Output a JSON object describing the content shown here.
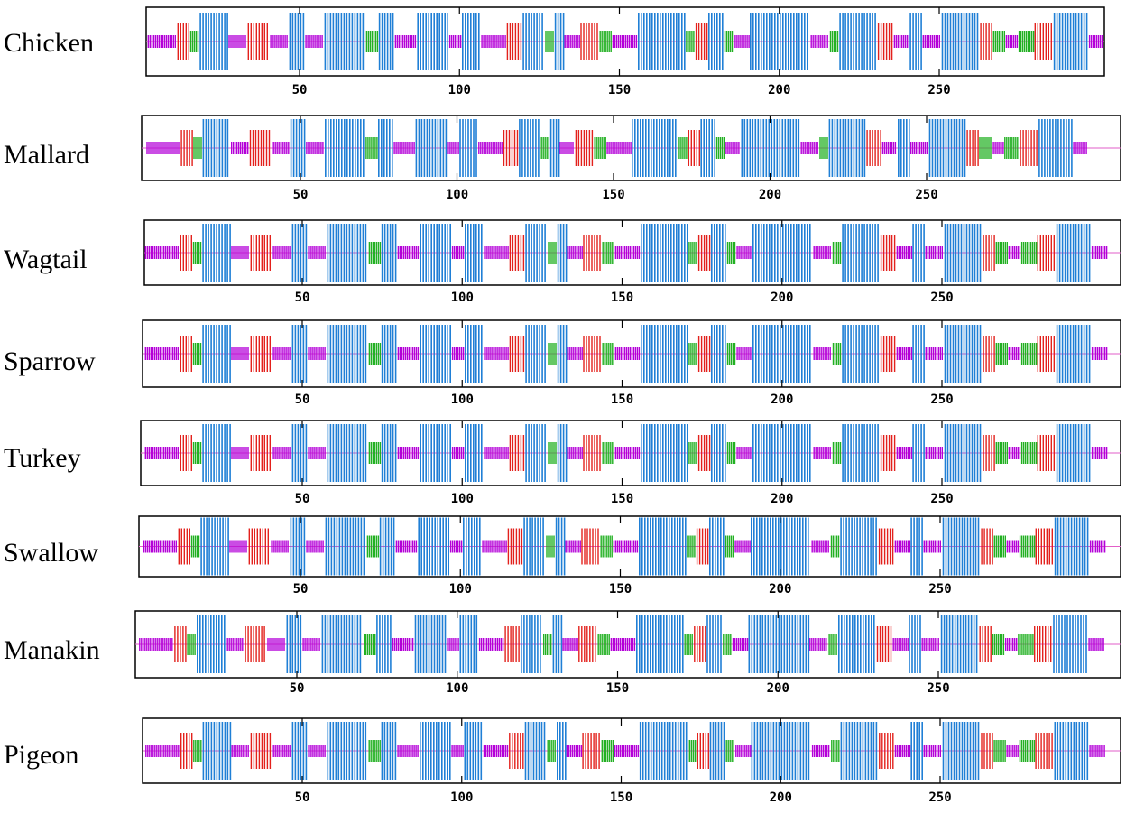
{
  "colors": {
    "helix": "#1f7fd6",
    "strand": "#e3211c",
    "turn": "#22b022",
    "coil": "#b400d8",
    "frame": "#000000",
    "midline": "#e25ec8"
  },
  "axis": {
    "ticks": [
      "50",
      "100",
      "150",
      "200",
      "250"
    ]
  },
  "tracks": [
    {
      "name": "Chicken"
    },
    {
      "name": "Mallard"
    },
    {
      "name": "Wagtail"
    },
    {
      "name": "Sparrow"
    },
    {
      "name": "Turkey"
    },
    {
      "name": "Swallow"
    },
    {
      "name": "Manakin"
    },
    {
      "name": "Pigeon"
    }
  ]
}
